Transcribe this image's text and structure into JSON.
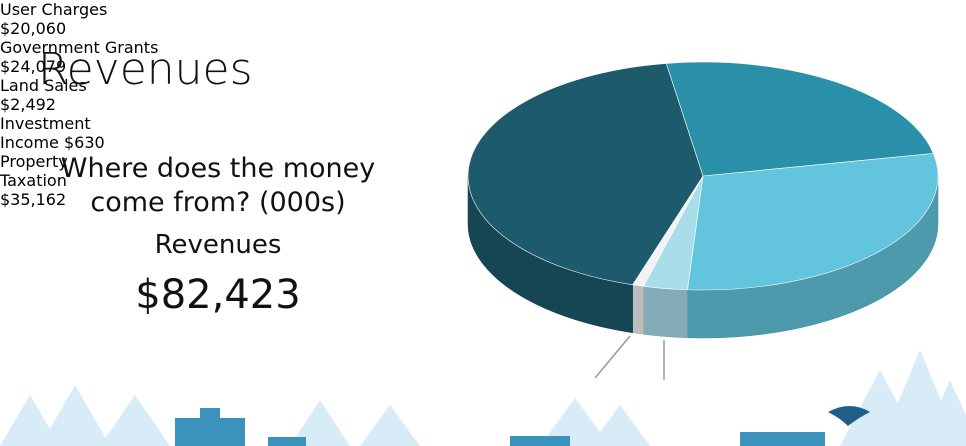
{
  "chart_data": {
    "type": "pie3d",
    "title": "Revenues",
    "subtitle": "Where does the money come from? (000s)",
    "total_heading": "Revenues",
    "total": "$82,423",
    "categories": [
      "User Charges",
      "Government Grants",
      "Land Sales",
      "Investment Income",
      "Property Taxation"
    ],
    "values": [
      20060,
      24079,
      2492,
      630,
      35162
    ],
    "value_labels": [
      "$20,060",
      "$24,079",
      "$2,492",
      "$630",
      "$35,162"
    ],
    "colors": [
      "#2a8fa8",
      "#62c5dd",
      "#a9dde9",
      "#f2f2f2",
      "#1c5a6c"
    ]
  }
}
